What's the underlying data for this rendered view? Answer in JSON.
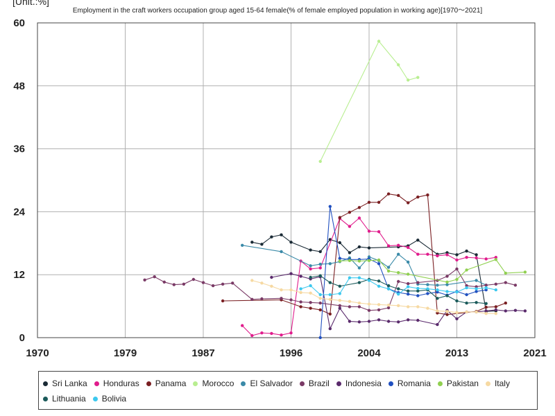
{
  "chart_data": {
    "type": "line",
    "title": "Employment in the craft workers occupation group aged 15-64 female(% of female employed population in working age)[1970～2021]",
    "unit_label": "[Unit.:%]",
    "xlim": [
      1970,
      2021
    ],
    "ylim": [
      0,
      60
    ],
    "x_ticks": [
      "1970",
      "1979",
      "1987",
      "1996",
      "2004",
      "2013",
      "2021"
    ],
    "y_ticks": [
      "0",
      "12",
      "24",
      "36",
      "48",
      "60"
    ],
    "grid": true,
    "legend_position": "bottom",
    "series": [
      {
        "name": "Sri Lanka",
        "color": "#1a2a35",
        "points": [
          [
            1992,
            18.2
          ],
          [
            1993,
            17.8
          ],
          [
            1994,
            19.2
          ],
          [
            1995,
            19.6
          ],
          [
            1996,
            18.2
          ],
          [
            1998,
            16.7
          ],
          [
            1999,
            16.4
          ],
          [
            2000,
            18.7
          ],
          [
            2001,
            18.1
          ],
          [
            2002,
            16.2
          ],
          [
            2003,
            17.3
          ],
          [
            2004,
            17.1
          ],
          [
            2007,
            17.3
          ],
          [
            2008,
            17.5
          ],
          [
            2009,
            18.6
          ],
          [
            2011,
            15.9
          ],
          [
            2012,
            16.2
          ],
          [
            2013,
            15.8
          ],
          [
            2014,
            16.5
          ],
          [
            2015,
            15.8
          ],
          [
            2016,
            5.0
          ],
          [
            2017,
            5.1
          ]
        ]
      },
      {
        "name": "Honduras",
        "color": "#e01c8c",
        "points": [
          [
            1991,
            2.3
          ],
          [
            1992,
            0.4
          ],
          [
            1993,
            0.9
          ],
          [
            1994,
            0.8
          ],
          [
            1995,
            0.5
          ],
          [
            1996,
            0.9
          ],
          [
            1997,
            14.6
          ],
          [
            1998,
            13.1
          ],
          [
            1999,
            13.3
          ],
          [
            2001,
            22.7
          ],
          [
            2002,
            21.2
          ],
          [
            2003,
            22.8
          ],
          [
            2004,
            20.3
          ],
          [
            2005,
            20.2
          ],
          [
            2006,
            17.5
          ],
          [
            2007,
            17.6
          ],
          [
            2008,
            17.2
          ],
          [
            2009,
            15.9
          ],
          [
            2010,
            15.9
          ],
          [
            2011,
            15.6
          ],
          [
            2012,
            15.8
          ],
          [
            2013,
            14.8
          ],
          [
            2014,
            15.3
          ],
          [
            2015,
            15.2
          ],
          [
            2016,
            15.0
          ],
          [
            2017,
            15.3
          ]
        ]
      },
      {
        "name": "Panama",
        "color": "#7a1f22",
        "points": [
          [
            1989,
            7.0
          ],
          [
            1995,
            7.2
          ],
          [
            1997,
            5.9
          ],
          [
            1998,
            5.6
          ],
          [
            1999,
            5.3
          ],
          [
            2000,
            4.5
          ],
          [
            2001,
            22.9
          ],
          [
            2002,
            23.9
          ],
          [
            2003,
            24.8
          ],
          [
            2004,
            25.8
          ],
          [
            2005,
            25.8
          ],
          [
            2006,
            27.4
          ],
          [
            2007,
            27.1
          ],
          [
            2008,
            25.7
          ],
          [
            2009,
            26.8
          ],
          [
            2010,
            27.2
          ],
          [
            2011,
            4.7
          ],
          [
            2012,
            4.4
          ],
          [
            2015,
            5.0
          ],
          [
            2016,
            5.8
          ],
          [
            2017,
            5.9
          ],
          [
            2018,
            6.6
          ]
        ]
      },
      {
        "name": "Morocco",
        "color": "#b8ee90",
        "points": [
          [
            1999,
            33.6
          ],
          [
            2005,
            56.5
          ],
          [
            2007,
            52.0
          ],
          [
            2008,
            49.1
          ],
          [
            2009,
            49.6
          ]
        ]
      },
      {
        "name": "El Salvador",
        "color": "#3a8aa8",
        "points": [
          [
            1991,
            17.6
          ],
          [
            1995,
            16.4
          ],
          [
            1998,
            13.7
          ],
          [
            1999,
            14.0
          ],
          [
            2000,
            14.1
          ],
          [
            2001,
            14.5
          ],
          [
            2002,
            15.2
          ],
          [
            2003,
            13.3
          ],
          [
            2004,
            15.4
          ],
          [
            2005,
            14.7
          ],
          [
            2006,
            13.4
          ],
          [
            2007,
            15.9
          ],
          [
            2008,
            14.4
          ],
          [
            2009,
            10.2
          ],
          [
            2010,
            10.1
          ],
          [
            2011,
            10.0
          ],
          [
            2012,
            10.1
          ],
          [
            2015,
            10.9
          ],
          [
            2016,
            10.0
          ]
        ]
      },
      {
        "name": "Brazil",
        "color": "#7a3a66",
        "points": [
          [
            1981,
            11.0
          ],
          [
            1982,
            11.6
          ],
          [
            1983,
            10.6
          ],
          [
            1984,
            10.1
          ],
          [
            1985,
            10.2
          ],
          [
            1986,
            11.1
          ],
          [
            1987,
            10.5
          ],
          [
            1988,
            9.9
          ],
          [
            1989,
            10.2
          ],
          [
            1990,
            10.4
          ],
          [
            1992,
            7.3
          ],
          [
            1993,
            7.4
          ],
          [
            1995,
            7.5
          ],
          [
            1996,
            7.2
          ],
          [
            1997,
            6.8
          ],
          [
            1998,
            6.7
          ],
          [
            1999,
            6.6
          ],
          [
            2001,
            6.1
          ],
          [
            2002,
            5.9
          ],
          [
            2003,
            5.9
          ],
          [
            2004,
            5.2
          ],
          [
            2005,
            5.3
          ],
          [
            2006,
            5.7
          ],
          [
            2007,
            10.7
          ],
          [
            2008,
            10.3
          ],
          [
            2009,
            10.5
          ],
          [
            2011,
            10.9
          ],
          [
            2012,
            11.7
          ],
          [
            2013,
            13.1
          ],
          [
            2014,
            9.9
          ],
          [
            2015,
            9.7
          ],
          [
            2016,
            10.0
          ],
          [
            2017,
            10.2
          ],
          [
            2018,
            10.5
          ],
          [
            2019,
            10.0
          ]
        ]
      },
      {
        "name": "Indonesia",
        "color": "#5a2a6c",
        "points": [
          [
            1994,
            11.5
          ],
          [
            1996,
            12.2
          ],
          [
            1997,
            11.7
          ],
          [
            1998,
            11.2
          ],
          [
            1999,
            11.6
          ],
          [
            2000,
            1.7
          ],
          [
            2001,
            5.6
          ],
          [
            2002,
            3.1
          ],
          [
            2003,
            3.0
          ],
          [
            2004,
            3.1
          ],
          [
            2005,
            3.4
          ],
          [
            2006,
            3.1
          ],
          [
            2007,
            3.0
          ],
          [
            2008,
            3.4
          ],
          [
            2009,
            3.3
          ],
          [
            2011,
            2.5
          ],
          [
            2012,
            5.2
          ],
          [
            2013,
            3.6
          ],
          [
            2014,
            4.9
          ],
          [
            2015,
            4.9
          ],
          [
            2016,
            5.1
          ],
          [
            2017,
            5.3
          ],
          [
            2018,
            5.1
          ],
          [
            2019,
            5.2
          ],
          [
            2020,
            5.1
          ]
        ]
      },
      {
        "name": "Romania",
        "color": "#2050c0",
        "points": [
          [
            1999,
            0.0
          ],
          [
            2000,
            25.0
          ],
          [
            2001,
            15.1
          ],
          [
            2002,
            14.9
          ],
          [
            2003,
            14.9
          ],
          [
            2004,
            15.0
          ],
          [
            2005,
            14.1
          ],
          [
            2006,
            9.3
          ],
          [
            2007,
            8.6
          ],
          [
            2008,
            8.3
          ],
          [
            2009,
            8.0
          ],
          [
            2010,
            8.4
          ],
          [
            2011,
            8.7
          ],
          [
            2012,
            8.1
          ],
          [
            2013,
            8.8
          ],
          [
            2014,
            8.2
          ],
          [
            2015,
            8.8
          ],
          [
            2016,
            9.1
          ]
        ]
      },
      {
        "name": "Pakistan",
        "color": "#90d050",
        "points": [
          [
            2001,
            14.6
          ],
          [
            2002,
            14.7
          ],
          [
            2003,
            14.6
          ],
          [
            2004,
            14.7
          ],
          [
            2005,
            14.8
          ],
          [
            2006,
            12.7
          ],
          [
            2007,
            12.4
          ],
          [
            2008,
            12.1
          ],
          [
            2012,
            10.6
          ],
          [
            2013,
            11.1
          ],
          [
            2014,
            12.9
          ],
          [
            2017,
            14.9
          ],
          [
            2018,
            12.3
          ],
          [
            2020,
            12.5
          ]
        ]
      },
      {
        "name": "Italy",
        "color": "#f6d9a2",
        "points": [
          [
            1992,
            10.9
          ],
          [
            1993,
            10.4
          ],
          [
            1994,
            9.8
          ],
          [
            1995,
            9.1
          ],
          [
            1996,
            9.1
          ],
          [
            1997,
            8.6
          ],
          [
            1998,
            8.5
          ],
          [
            1999,
            7.5
          ],
          [
            2000,
            7.3
          ],
          [
            2001,
            7.1
          ],
          [
            2002,
            6.9
          ],
          [
            2003,
            6.6
          ],
          [
            2004,
            6.4
          ],
          [
            2005,
            6.3
          ],
          [
            2006,
            6.2
          ],
          [
            2007,
            6.1
          ],
          [
            2008,
            5.9
          ],
          [
            2009,
            5.9
          ],
          [
            2010,
            5.6
          ],
          [
            2011,
            5.1
          ],
          [
            2012,
            5.0
          ],
          [
            2013,
            4.8
          ],
          [
            2014,
            4.9
          ],
          [
            2015,
            4.9
          ],
          [
            2016,
            4.6
          ],
          [
            2017,
            4.6
          ]
        ]
      },
      {
        "name": "Lithuania",
        "color": "#1a5a5a",
        "points": [
          [
            1998,
            11.5
          ],
          [
            1999,
            11.8
          ],
          [
            2000,
            10.5
          ],
          [
            2001,
            9.8
          ],
          [
            2003,
            10.5
          ],
          [
            2004,
            11.1
          ],
          [
            2005,
            10.8
          ],
          [
            2006,
            9.9
          ],
          [
            2007,
            9.3
          ],
          [
            2008,
            8.9
          ],
          [
            2009,
            8.9
          ],
          [
            2010,
            9.1
          ],
          [
            2011,
            7.5
          ],
          [
            2012,
            8.0
          ],
          [
            2013,
            7.0
          ],
          [
            2014,
            6.6
          ],
          [
            2015,
            6.7
          ],
          [
            2016,
            6.5
          ]
        ]
      },
      {
        "name": "Bolivia",
        "color": "#3cc8ee",
        "points": [
          [
            1997,
            9.3
          ],
          [
            1998,
            9.9
          ],
          [
            1999,
            8.2
          ],
          [
            2000,
            8.2
          ],
          [
            2001,
            8.4
          ],
          [
            2002,
            11.4
          ],
          [
            2003,
            11.4
          ],
          [
            2004,
            10.9
          ],
          [
            2005,
            9.8
          ],
          [
            2006,
            9.3
          ],
          [
            2007,
            8.3
          ],
          [
            2008,
            9.7
          ],
          [
            2009,
            9.4
          ],
          [
            2010,
            9.3
          ],
          [
            2011,
            9.1
          ],
          [
            2012,
            8.8
          ],
          [
            2013,
            8.7
          ],
          [
            2014,
            9.5
          ],
          [
            2015,
            9.3
          ],
          [
            2016,
            9.5
          ],
          [
            2017,
            9.1
          ]
        ]
      }
    ]
  }
}
